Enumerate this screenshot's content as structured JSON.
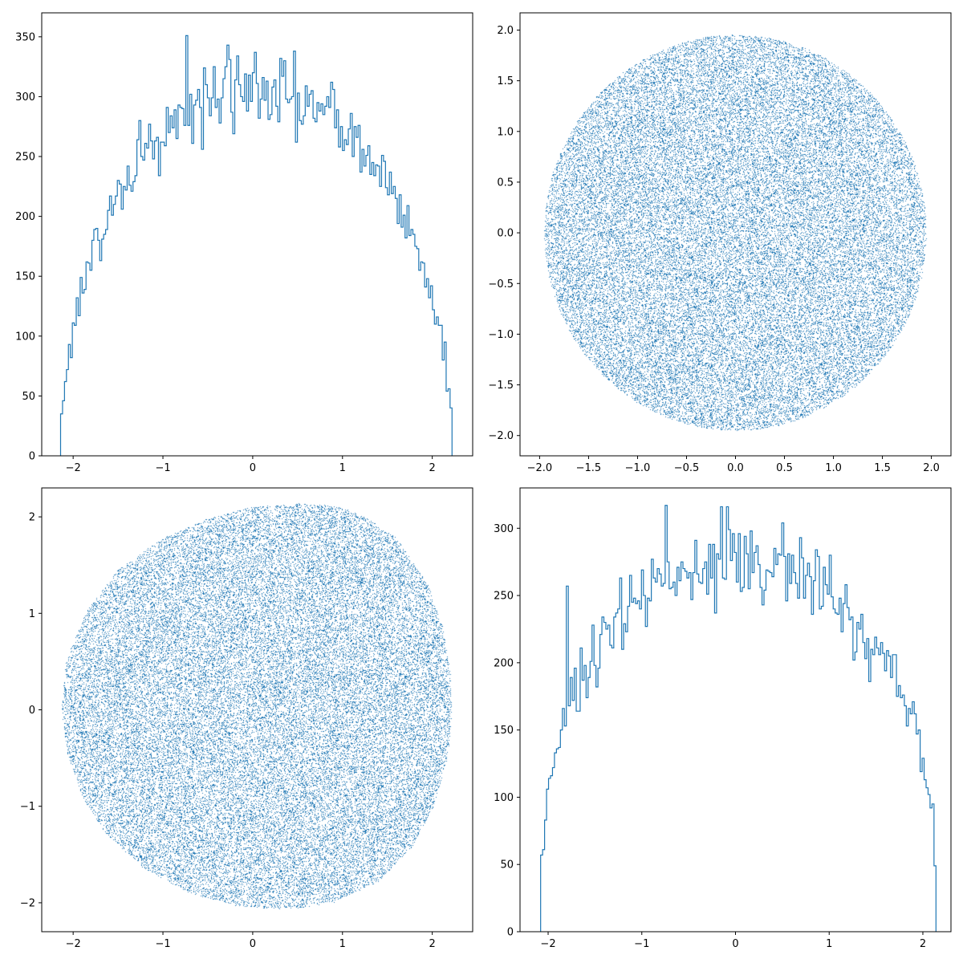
{
  "figure": {
    "background": "#ffffff",
    "series_color": "#1f77b4"
  },
  "chart_data": [
    {
      "type": "histogram",
      "title": "",
      "xlabel": "",
      "ylabel": "",
      "xlim": [
        -2.35,
        2.45
      ],
      "ylim": [
        0,
        370
      ],
      "xticks": [
        -2,
        -1,
        0,
        1,
        2
      ],
      "xtick_labels": [
        "−2",
        "−1",
        "0",
        "1",
        "2"
      ],
      "yticks": [
        0,
        50,
        100,
        150,
        200,
        250,
        300,
        350
      ],
      "ytick_labels": [
        "0",
        "50",
        "100",
        "150",
        "200",
        "250",
        "300",
        "350"
      ],
      "histtype": "step",
      "bin_range": [
        -2.14,
        2.22
      ],
      "bins": 200,
      "shape": "semicircle",
      "peak_value": 351,
      "peak_x": -0.74,
      "approx_mean_at_center": 305,
      "notable_counts": [
        {
          "x": -0.74,
          "y": 351
        },
        {
          "x": -0.27,
          "y": 343
        },
        {
          "x": 0.02,
          "y": 337
        },
        {
          "x": 1.55,
          "y": 219
        },
        {
          "x": -1.25,
          "y": 280
        }
      ],
      "grid": false,
      "legend": "none"
    },
    {
      "type": "scatter",
      "title": "",
      "xlabel": "",
      "ylabel": "",
      "xlim": [
        -2.2,
        2.2
      ],
      "ylim": [
        -2.2,
        2.17
      ],
      "xticks": [
        -2.0,
        -1.5,
        -1.0,
        -0.5,
        0.0,
        0.5,
        1.0,
        1.5,
        2.0
      ],
      "xtick_labels": [
        "−2.0",
        "−1.5",
        "−1.0",
        "−0.5",
        "0.0",
        "0.5",
        "1.0",
        "1.5",
        "2.0"
      ],
      "yticks": [
        -2.0,
        -1.5,
        -1.0,
        -0.5,
        0.0,
        0.5,
        1.0,
        1.5,
        2.0
      ],
      "ytick_labels": [
        "−2.0",
        "−1.5",
        "−1.0",
        "−0.5",
        "0.0",
        "0.5",
        "1.0",
        "1.5",
        "2.0"
      ],
      "marker": "pixel",
      "region": "disk",
      "center": [
        0,
        0
      ],
      "radius": 1.95,
      "grid": false,
      "legend": "none"
    },
    {
      "type": "scatter",
      "title": "",
      "xlabel": "",
      "ylabel": "",
      "xlim": [
        -2.35,
        2.45
      ],
      "ylim": [
        -2.3,
        2.3
      ],
      "xticks": [
        -2,
        -1,
        0,
        1,
        2
      ],
      "xtick_labels": [
        "−2",
        "−1",
        "0",
        "1",
        "2"
      ],
      "yticks": [
        -2,
        -1,
        0,
        1,
        2
      ],
      "ytick_labels": [
        "−2",
        "−1",
        "0",
        "1",
        "2"
      ],
      "marker": "pixel",
      "region": "irregular-blob",
      "boundary": [
        [
          2.22,
          0.0
        ],
        [
          2.2,
          0.4
        ],
        [
          2.12,
          0.85
        ],
        [
          1.95,
          1.3
        ],
        [
          1.6,
          1.78
        ],
        [
          1.3,
          1.97
        ],
        [
          1.0,
          2.1
        ],
        [
          0.55,
          2.14
        ],
        [
          0.0,
          2.1
        ],
        [
          -0.5,
          1.98
        ],
        [
          -1.0,
          1.78
        ],
        [
          -1.5,
          1.45
        ],
        [
          -1.85,
          1.02
        ],
        [
          -2.08,
          0.5
        ],
        [
          -2.13,
          0.0
        ],
        [
          -2.06,
          -0.45
        ],
        [
          -1.9,
          -0.9
        ],
        [
          -1.62,
          -1.3
        ],
        [
          -1.2,
          -1.65
        ],
        [
          -0.7,
          -1.9
        ],
        [
          -0.2,
          -2.03
        ],
        [
          0.4,
          -2.07
        ],
        [
          0.9,
          -2.0
        ],
        [
          1.4,
          -1.78
        ],
        [
          1.78,
          -1.42
        ],
        [
          2.04,
          -0.95
        ],
        [
          2.18,
          -0.45
        ]
      ],
      "grid": false,
      "legend": "none"
    },
    {
      "type": "histogram",
      "title": "",
      "xlabel": "",
      "ylabel": "",
      "xlim": [
        -2.3,
        2.3
      ],
      "ylim": [
        0,
        330
      ],
      "xticks": [
        -2,
        -1,
        0,
        1,
        2
      ],
      "xtick_labels": [
        "−2",
        "−1",
        "0",
        "1",
        "2"
      ],
      "yticks": [
        0,
        50,
        100,
        150,
        200,
        250,
        300
      ],
      "ytick_labels": [
        "0",
        "50",
        "100",
        "150",
        "200",
        "250",
        "300"
      ],
      "histtype": "step",
      "bin_range": [
        -2.08,
        2.14
      ],
      "bins": 200,
      "shape": "flattened-semicircle",
      "peak_value": 317,
      "peak_x": -0.75,
      "approx_mean_at_center": 275,
      "notable_counts": [
        {
          "x": -0.75,
          "y": 317
        },
        {
          "x": -0.15,
          "y": 316
        },
        {
          "x": 0.7,
          "y": 293
        },
        {
          "x": -1.8,
          "y": 257
        }
      ],
      "grid": false,
      "legend": "none"
    }
  ]
}
